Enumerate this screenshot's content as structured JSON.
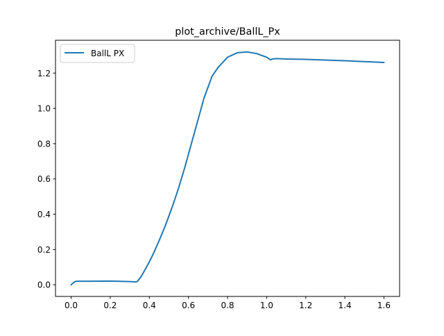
{
  "chart_data": {
    "type": "line",
    "title": "plot_archive/BallL_Px",
    "xlabel": "",
    "ylabel": "",
    "xlim": [
      -0.08,
      1.68
    ],
    "ylim": [
      -0.066,
      1.386
    ],
    "xticks": [
      0.0,
      0.2,
      0.4,
      0.6,
      0.8,
      1.0,
      1.2,
      1.4,
      1.6
    ],
    "xtick_labels": [
      "0.0",
      "0.2",
      "0.4",
      "0.6",
      "0.8",
      "1.0",
      "1.2",
      "1.4",
      "1.6"
    ],
    "yticks": [
      0.0,
      0.2,
      0.4,
      0.6,
      0.8,
      1.0,
      1.2
    ],
    "ytick_labels": [
      "0.0",
      "0.2",
      "0.4",
      "0.6",
      "0.8",
      "1.0",
      "1.2"
    ],
    "grid": false,
    "legend": {
      "position": "upper left"
    },
    "series": [
      {
        "name": "BallL PX",
        "color": "#1f77b4",
        "x": [
          0.0,
          0.01,
          0.02,
          0.03,
          0.1,
          0.2,
          0.3,
          0.33,
          0.34,
          0.36,
          0.38,
          0.4,
          0.42,
          0.45,
          0.48,
          0.5,
          0.52,
          0.55,
          0.58,
          0.6,
          0.62,
          0.65,
          0.68,
          0.7,
          0.72,
          0.75,
          0.8,
          0.85,
          0.9,
          0.95,
          1.0,
          1.02,
          1.03,
          1.05,
          1.1,
          1.2,
          1.3,
          1.4,
          1.5,
          1.6
        ],
        "y": [
          0.0,
          0.01,
          0.018,
          0.02,
          0.02,
          0.021,
          0.018,
          0.016,
          0.02,
          0.05,
          0.09,
          0.13,
          0.175,
          0.25,
          0.33,
          0.39,
          0.45,
          0.55,
          0.66,
          0.74,
          0.82,
          0.94,
          1.06,
          1.12,
          1.18,
          1.23,
          1.29,
          1.315,
          1.32,
          1.31,
          1.29,
          1.275,
          1.28,
          1.282,
          1.28,
          1.278,
          1.274,
          1.27,
          1.265,
          1.26
        ]
      }
    ]
  }
}
